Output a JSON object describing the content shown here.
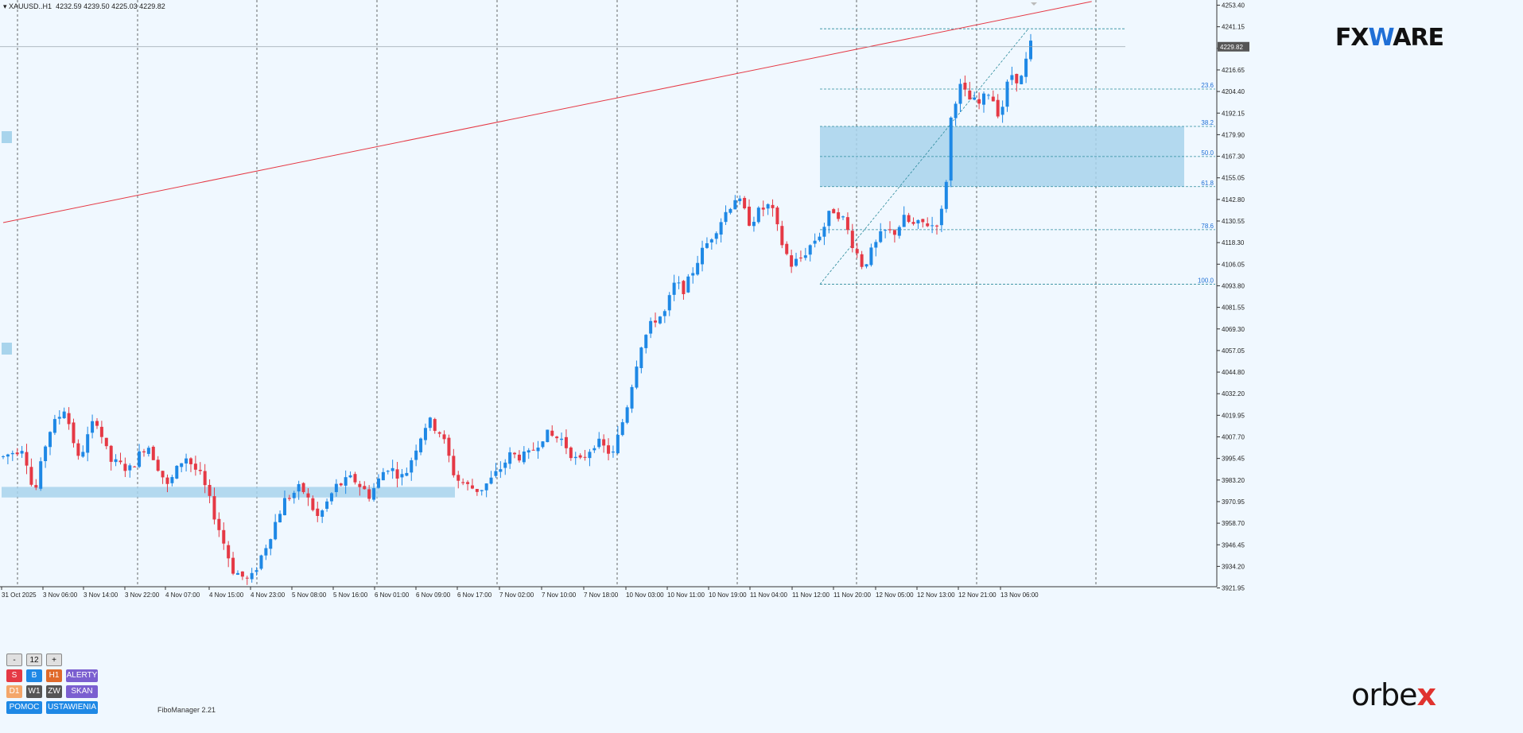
{
  "header": {
    "symbol": "XAUUSD..H1",
    "ohlc": "4232.59 4239.50 4225.03 4229.82"
  },
  "colors": {
    "background": "#f0f8ff",
    "bull": "#1e88e5",
    "bear": "#e53945",
    "trendline": "#e53945",
    "zone": "#a8d4ec",
    "fib": "#2b8a9c",
    "price_tag": "#555555"
  },
  "logos": {
    "fxware": "FXWARE",
    "orbex": "orbex"
  },
  "indicator_label": "FiboManager 2.21",
  "controls": {
    "minus": "-",
    "count": "12",
    "plus": "+",
    "buttons": [
      {
        "label": "S",
        "color": "#e53945"
      },
      {
        "label": "B",
        "color": "#1e88e5"
      },
      {
        "label": "H1",
        "color": "#e06a2b"
      },
      {
        "label": "ALERTY",
        "color": "#7b5fd0"
      },
      {
        "label": "D1",
        "color": "#f4a66a"
      },
      {
        "label": "W1",
        "color": "#555555"
      },
      {
        "label": "ZW",
        "color": "#555555"
      },
      {
        "label": "SKAN",
        "color": "#7b5fd0"
      },
      {
        "label": "POMOC",
        "color": "#1e88e5"
      },
      {
        "label": "USTAWIENIA",
        "color": "#1e88e5"
      }
    ]
  },
  "chart_data": {
    "type": "candlestick",
    "title": "XAUUSD..H1",
    "y_range": [
      3915.0,
      4255.0
    ],
    "y_ticks": [
      "4253.40",
      "4241.15",
      "4228.90",
      "4216.65",
      "4204.40",
      "4192.15",
      "4179.90",
      "4167.30",
      "4155.05",
      "4142.80",
      "4130.55",
      "4118.30",
      "4106.05",
      "4093.80",
      "4081.55",
      "4069.30",
      "4057.05",
      "4044.80",
      "4032.20",
      "4019.95",
      "4007.70",
      "3995.45",
      "3983.20",
      "3970.95",
      "3958.70",
      "3946.45",
      "3934.20",
      "3921.95"
    ],
    "current_price": "4229.82",
    "x_ticks": [
      "31 Oct 2025",
      "3 Nov 06:00",
      "3 Nov 14:00",
      "3 Nov 22:00",
      "4 Nov 07:00",
      "4 Nov 15:00",
      "4 Nov 23:00",
      "5 Nov 08:00",
      "5 Nov 16:00",
      "6 Nov 01:00",
      "6 Nov 09:00",
      "6 Nov 17:00",
      "7 Nov 02:00",
      "7 Nov 10:00",
      "7 Nov 18:00",
      "10 Nov 03:00",
      "10 Nov 11:00",
      "10 Nov 19:00",
      "11 Nov 04:00",
      "11 Nov 12:00",
      "11 Nov 20:00",
      "12 Nov 05:00",
      "12 Nov 13:00",
      "12 Nov 21:00",
      "13 Nov 06:00"
    ],
    "candle_count": 220,
    "price_path": [
      [
        0,
        3997
      ],
      [
        6,
        4003
      ],
      [
        9,
        3974
      ],
      [
        13,
        4010
      ],
      [
        18,
        4025
      ],
      [
        22,
        3995
      ],
      [
        27,
        4020
      ],
      [
        31,
        3995
      ],
      [
        37,
        3990
      ],
      [
        42,
        4005
      ],
      [
        48,
        3980
      ],
      [
        53,
        3998
      ],
      [
        58,
        3985
      ],
      [
        62,
        3962
      ],
      [
        67,
        3933
      ],
      [
        72,
        3926
      ],
      [
        77,
        3948
      ],
      [
        82,
        3972
      ],
      [
        87,
        3980
      ],
      [
        92,
        3962
      ],
      [
        97,
        3980
      ],
      [
        102,
        3985
      ],
      [
        107,
        3975
      ],
      [
        112,
        3992
      ],
      [
        117,
        3985
      ],
      [
        121,
        4005
      ],
      [
        124,
        4018
      ],
      [
        128,
        4010
      ],
      [
        132,
        3985
      ],
      [
        136,
        3980
      ],
      [
        139,
        3978
      ],
      [
        143,
        3985
      ],
      [
        148,
        3998
      ],
      [
        153,
        3997
      ],
      [
        158,
        4010
      ],
      [
        163,
        4007
      ],
      [
        168,
        3993
      ],
      [
        173,
        4006
      ],
      [
        178,
        3998
      ],
      [
        182,
        4025
      ],
      [
        186,
        4060
      ],
      [
        190,
        4075
      ],
      [
        193,
        4078
      ],
      [
        196,
        4095
      ],
      [
        199,
        4092
      ],
      [
        203,
        4110
      ],
      [
        207,
        4123
      ],
      [
        211,
        4136
      ],
      [
        214,
        4145
      ],
      [
        218,
        4130
      ],
      [
        221,
        4137
      ],
      [
        224,
        4140
      ],
      [
        227,
        4120
      ],
      [
        230,
        4106
      ],
      [
        233,
        4110
      ],
      [
        236,
        4118
      ],
      [
        239,
        4125
      ],
      [
        242,
        4138
      ],
      [
        245,
        4133
      ],
      [
        248,
        4118
      ],
      [
        251,
        4105
      ],
      [
        254,
        4115
      ],
      [
        257,
        4125
      ],
      [
        260,
        4124
      ],
      [
        263,
        4132
      ],
      [
        266,
        4128
      ],
      [
        269,
        4130
      ],
      [
        272,
        4128
      ],
      [
        275,
        4140
      ],
      [
        276,
        4183
      ],
      [
        279,
        4208
      ],
      [
        282,
        4200
      ],
      [
        285,
        4197
      ],
      [
        288,
        4205
      ],
      [
        291,
        4190
      ],
      [
        294,
        4215
      ],
      [
        297,
        4210
      ],
      [
        300,
        4231
      ]
    ],
    "trendline": {
      "start": [
        0,
        4130.0
      ],
      "end": [
        232,
        4255.5
      ]
    },
    "fibonacci": {
      "high": 4240.0,
      "low": 4095.0,
      "levels": [
        {
          "label": "23.6",
          "value": 4205.8
        },
        {
          "label": "38.2",
          "value": 4184.6
        },
        {
          "label": "50.0",
          "value": 4167.5
        },
        {
          "label": "61.8",
          "value": 4150.4
        },
        {
          "label": "78.6",
          "value": 4126.0
        },
        {
          "label": "100.0",
          "value": 4095.0
        }
      ]
    },
    "zones": [
      {
        "y_from": 4150.5,
        "y_to": 4184.6
      },
      {
        "y_from": 3974.0,
        "y_to": 3980.0
      }
    ]
  }
}
